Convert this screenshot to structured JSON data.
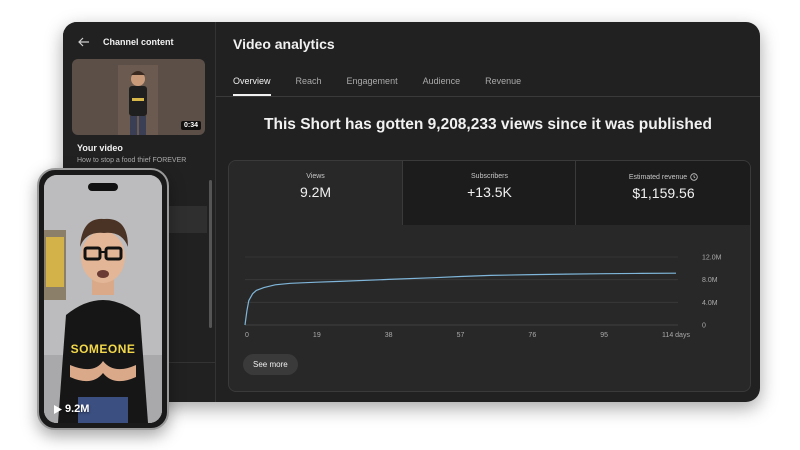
{
  "sidebar": {
    "title": "Channel content",
    "thumbnail_duration": "0:34",
    "video_heading": "Your video",
    "video_title": "How to stop a food thief FOREVER"
  },
  "main": {
    "title": "Video analytics",
    "tabs": [
      {
        "label": "Overview",
        "active": true
      },
      {
        "label": "Reach",
        "active": false
      },
      {
        "label": "Engagement",
        "active": false
      },
      {
        "label": "Audience",
        "active": false
      },
      {
        "label": "Revenue",
        "active": false
      }
    ],
    "headline": "This Short has gotten 9,208,233 views since it was published",
    "metrics": [
      {
        "label": "Views",
        "value": "9.2M"
      },
      {
        "label": "Subscribers",
        "value": "+13.5K"
      },
      {
        "label": "Estimated revenue",
        "value": "$1,159.56"
      }
    ],
    "see_more_label": "See more"
  },
  "chart_data": {
    "type": "line",
    "x_tick_labels": [
      "0",
      "19",
      "38",
      "57",
      "76",
      "95",
      "114 days"
    ],
    "y_tick_labels": [
      "12.0M",
      "8.0M",
      "4.0M",
      "0"
    ],
    "ylim": [
      0,
      12000000
    ],
    "xlim": [
      0,
      114
    ],
    "series": [
      {
        "color": "#7fb6d9",
        "x": [
          0,
          0.5,
          1,
          2,
          3,
          5,
          8,
          12,
          19,
          25,
          38,
          50,
          57,
          65,
          76,
          85,
          95,
          105,
          114
        ],
        "y": [
          0,
          2500000,
          4300000,
          5500000,
          6100000,
          6600000,
          7100000,
          7350000,
          7550000,
          7700000,
          8050000,
          8350000,
          8550000,
          8750000,
          8900000,
          8990000,
          9050000,
          9100000,
          9150000
        ]
      }
    ],
    "grid": true
  },
  "phone": {
    "shirt_text": "SOMEONE",
    "views": "9.2M"
  },
  "colors": {
    "panel_bg": "#212121",
    "card_bg": "#282828",
    "line": "#7fb6d9",
    "shirt_text": "#f2d84a"
  }
}
